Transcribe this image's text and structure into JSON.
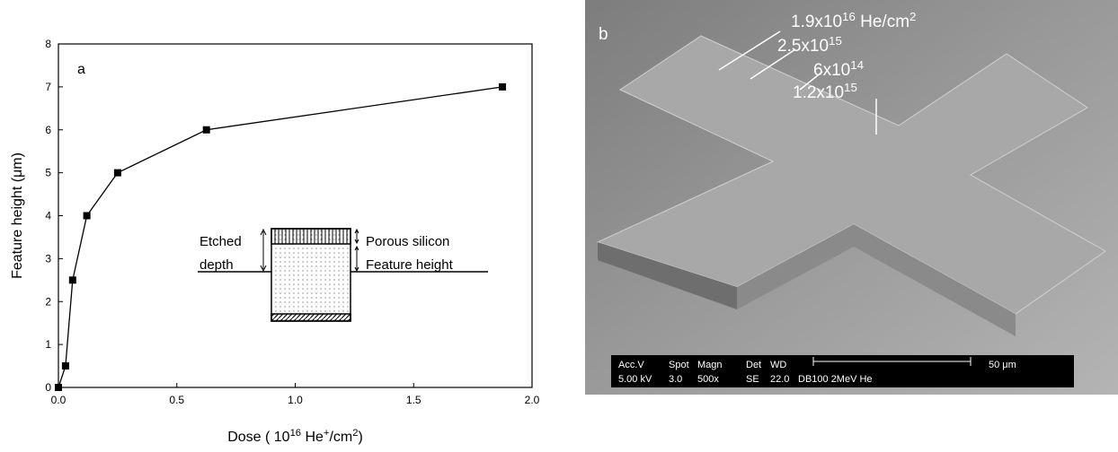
{
  "chart_data": {
    "type": "line",
    "panel_label": "a",
    "x_label": [
      "Dose ( 10",
      "16",
      " He",
      "+",
      "/cm",
      "2",
      ")"
    ],
    "y_label": "Feature height (μm)",
    "x": [
      0,
      0.03,
      0.06,
      0.12,
      0.25,
      0.625,
      1.875
    ],
    "series": [
      {
        "color": "#000000",
        "values": [
          0,
          0.5,
          2.5,
          4,
          5,
          6,
          7
        ]
      }
    ],
    "xlim": [
      0,
      2.0
    ],
    "xticks": [
      {
        "value": 0,
        "label": "0.0"
      },
      0.5,
      {
        "value": 1,
        "label": "1.0"
      },
      1.5,
      {
        "value": 2,
        "label": "2.0"
      }
    ],
    "ylim": [
      0,
      8
    ],
    "yticks": [
      0,
      1,
      2,
      3,
      4,
      5,
      6,
      7,
      8
    ],
    "grid": false,
    "inset": {
      "etched": [
        "Etched",
        "depth"
      ],
      "porous": "Porous silicon",
      "feature": "Feature height"
    }
  },
  "panel_b": {
    "label": "b",
    "annotations": [
      [
        "1.9x10",
        "16",
        " He/cm",
        "2"
      ],
      [
        "2.5x10",
        "15"
      ],
      [
        "6x10",
        "14"
      ],
      [
        "1.2x10",
        "15"
      ]
    ],
    "databar": {
      "header": [
        "Acc.V",
        "Spot",
        "Magn",
        "Det",
        "WD"
      ],
      "values": [
        "5.00 kV",
        "3.0",
        "500x",
        "SE",
        "22.0",
        "DB100 2MeV He"
      ],
      "scale": "50 μm"
    }
  }
}
